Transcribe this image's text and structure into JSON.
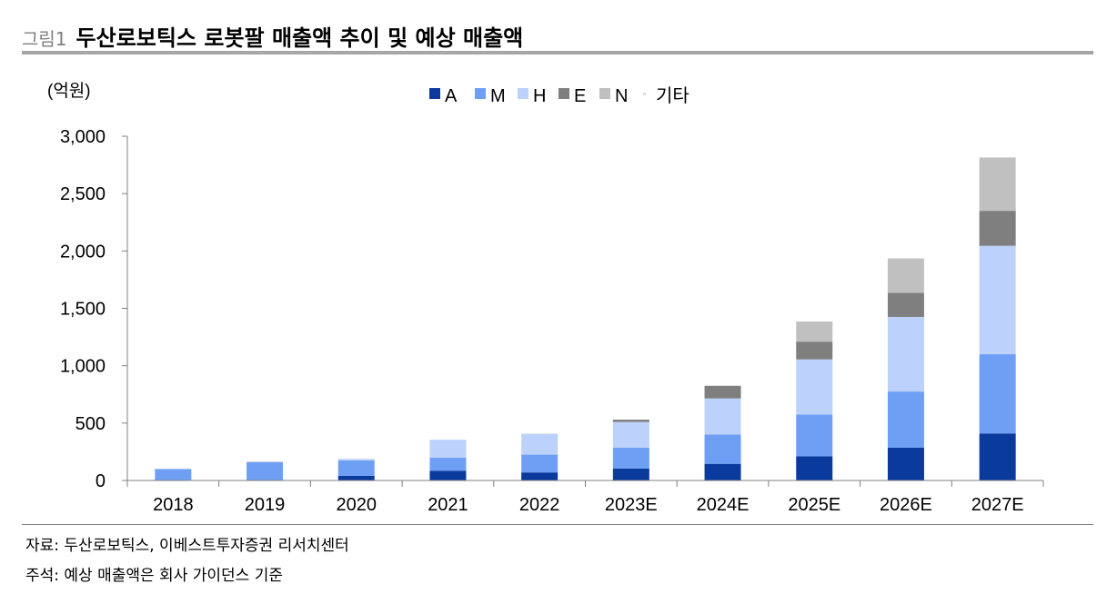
{
  "figure": {
    "label": "그림1",
    "title": "두산로보틱스 로봇팔 매출액 추이 및 예상 매출액"
  },
  "notes": {
    "source": "자료: 두산로보틱스, 이베스트투자증권 리서치센터",
    "remark": "주석: 예상 매출액은 회사 가이던스 기준"
  },
  "colors": {
    "A": "#0a3a9c",
    "M": "#6f9ff5",
    "H": "#bcd1fb",
    "E": "#7f7f7f",
    "N": "#c0c0c0",
    "기타": "#dddddd",
    "axis": "#808080",
    "rule": "#a6a6a6"
  },
  "chart_data": {
    "type": "bar",
    "stacked": true,
    "unit_label": "(억원)",
    "categories": [
      "2018",
      "2019",
      "2020",
      "2021",
      "2022",
      "2023E",
      "2024E",
      "2025E",
      "2026E",
      "2027E"
    ],
    "series": [
      {
        "name": "A",
        "values": [
          0,
          0,
          40,
          85,
          70,
          105,
          145,
          210,
          285,
          410
        ]
      },
      {
        "name": "M",
        "values": [
          100,
          160,
          135,
          115,
          155,
          180,
          255,
          365,
          490,
          690
        ]
      },
      {
        "name": "H",
        "values": [
          0,
          3,
          12,
          155,
          180,
          225,
          315,
          480,
          650,
          945
        ]
      },
      {
        "name": "E",
        "values": [
          0,
          0,
          0,
          0,
          0,
          20,
          110,
          155,
          210,
          305
        ]
      },
      {
        "name": "N",
        "values": [
          0,
          0,
          0,
          0,
          0,
          0,
          0,
          175,
          300,
          465
        ]
      },
      {
        "name": "기타",
        "values": [
          0,
          5,
          3,
          0,
          5,
          0,
          0,
          0,
          0,
          0
        ]
      }
    ],
    "ylim": [
      0,
      3000
    ],
    "yticks": [
      0,
      500,
      1000,
      1500,
      2000,
      2500,
      3000
    ],
    "ytick_labels": [
      "0",
      "500",
      "1,000",
      "1,500",
      "2,000",
      "2,500",
      "3,000"
    ],
    "legend_position": "top-center",
    "grid": false
  }
}
